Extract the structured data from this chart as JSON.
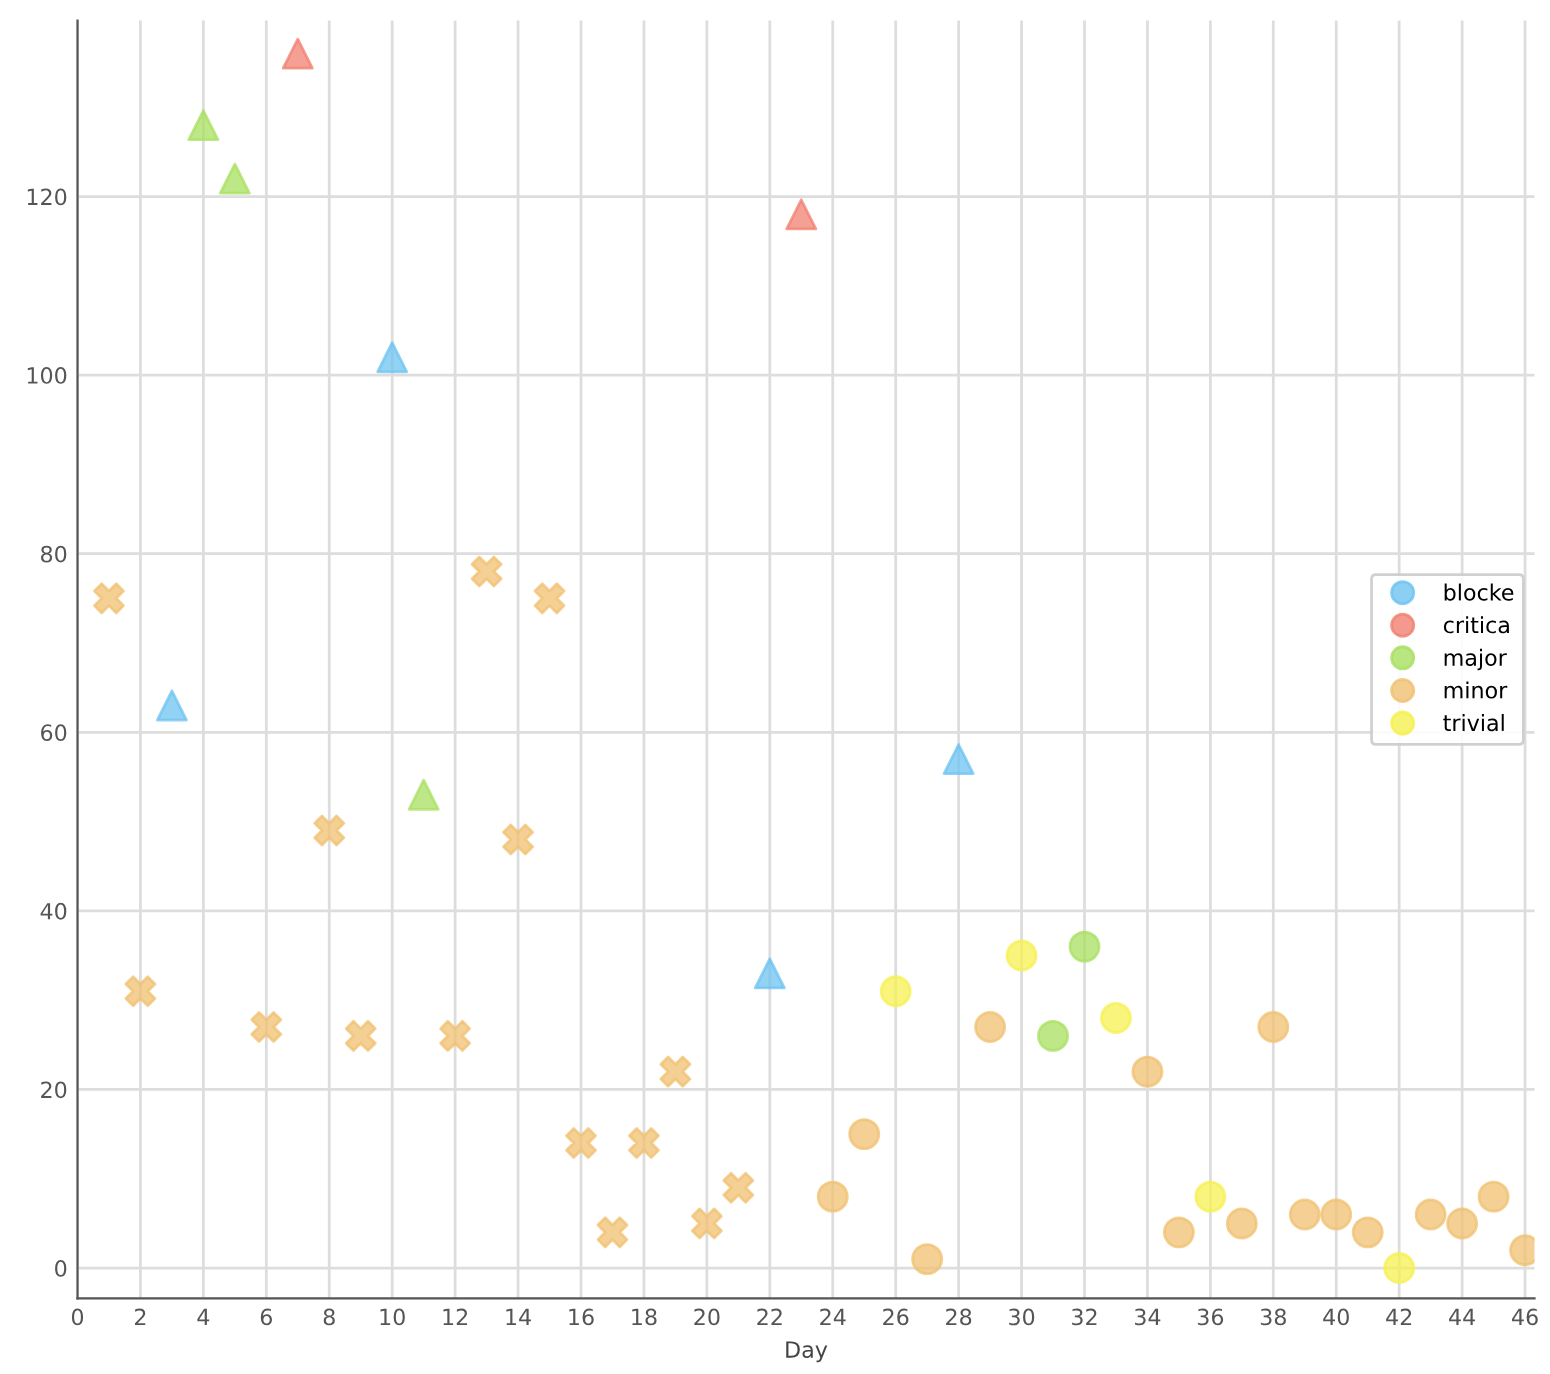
{
  "chart_data": {
    "type": "scatter",
    "xlabel": "Day",
    "xlim": [
      0,
      46.3
    ],
    "xticks": [
      0,
      2,
      4,
      6,
      8,
      10,
      12,
      14,
      16,
      18,
      20,
      22,
      24,
      26,
      28,
      30,
      32,
      34,
      36,
      38,
      40,
      42,
      44,
      46
    ],
    "ylim": [
      -3.4,
      139.7
    ],
    "yticks": [
      0,
      20,
      40,
      60,
      80,
      100,
      120
    ],
    "grid": true,
    "legend": "right",
    "series": [
      {
        "name": "blocke",
        "color": "#6ec3f0",
        "marker": "triangle",
        "x": [
          3,
          10,
          22,
          28
        ],
        "values": [
          63,
          102,
          33,
          57
        ]
      },
      {
        "name": "critica",
        "color": "#f08070",
        "marker": "triangle",
        "x": [
          7,
          23
        ],
        "values": [
          136,
          118
        ]
      },
      {
        "name": "major",
        "color": "#a8e060",
        "marker": "circle",
        "x": [
          31,
          32
        ],
        "values": [
          26,
          36
        ]
      },
      {
        "color": "#a8e060",
        "marker": "triangle",
        "x": [
          4,
          5,
          11
        ],
        "values": [
          128,
          122,
          53
        ]
      },
      {
        "color": "#f0c070",
        "marker": "cross",
        "x": [
          1,
          2,
          6,
          8,
          9,
          12,
          13,
          14,
          15,
          16,
          17,
          18,
          19,
          20,
          21
        ],
        "values": [
          75,
          31,
          27,
          49,
          26,
          26,
          78,
          48,
          75,
          14,
          4,
          14,
          22,
          5,
          9
        ]
      },
      {
        "name": "minor",
        "color": "#f0c070",
        "marker": "circle",
        "x": [
          24,
          25,
          27,
          29,
          34,
          35,
          37,
          38,
          39,
          40,
          41,
          43,
          44,
          45,
          46
        ],
        "values": [
          8,
          15,
          1,
          27,
          22,
          4,
          5,
          27,
          6,
          6,
          4,
          6,
          5,
          8,
          2
        ]
      },
      {
        "name": "trivial",
        "color": "#f5f050",
        "marker": "circle",
        "x": [
          26,
          30,
          33,
          36,
          42
        ],
        "values": [
          31,
          35,
          28,
          8,
          0
        ]
      }
    ]
  }
}
